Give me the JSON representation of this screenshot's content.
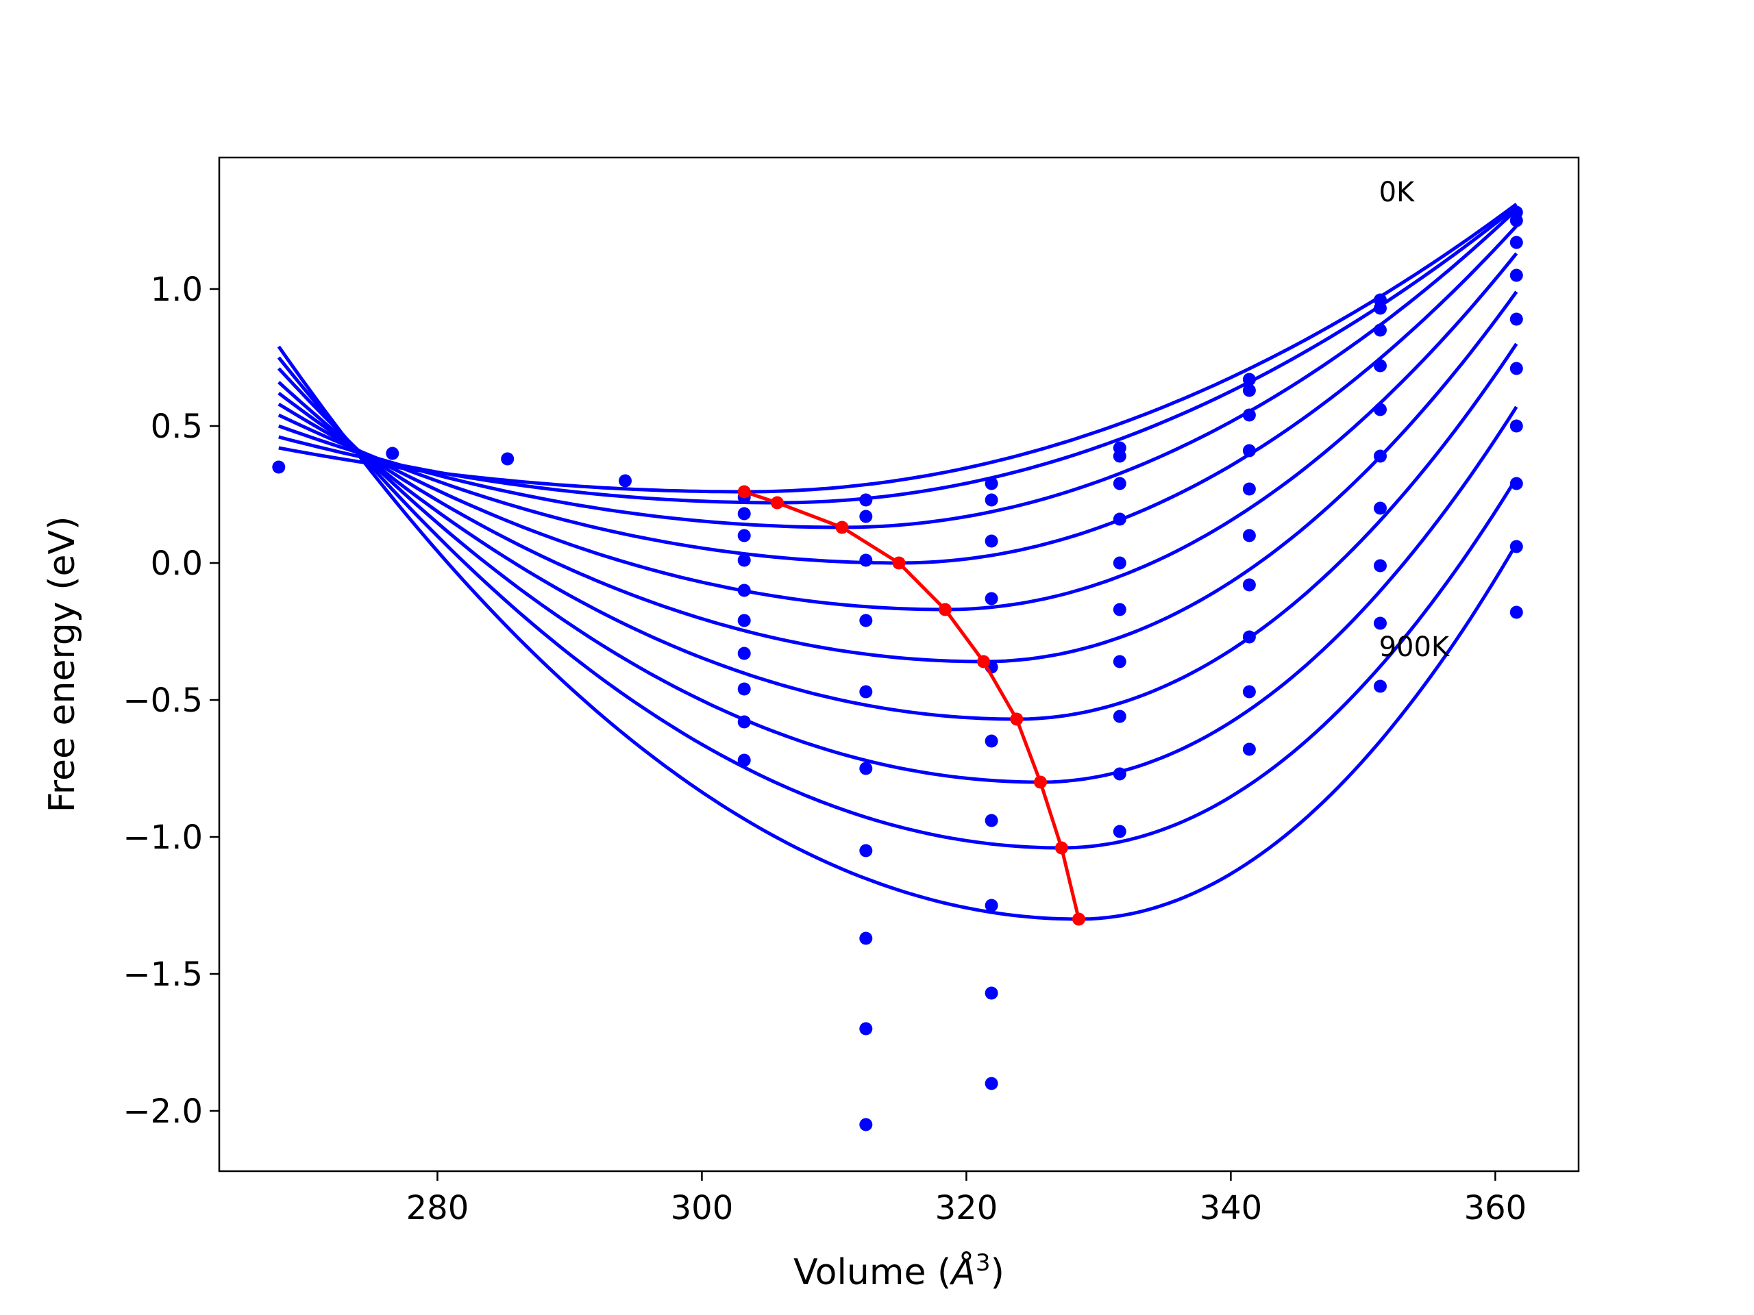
{
  "chart_data": {
    "type": "line",
    "title": "",
    "xlabel": "Volume (",
    "xlabel_symbol": "Å",
    "xlabel_sup": "3",
    "xlabel_close": ")",
    "ylabel": "Free energy (eV)",
    "xlim": [
      263.5,
      366.3
    ],
    "ylim": [
      -2.22,
      1.48
    ],
    "xticks": [
      280,
      300,
      320,
      340,
      360
    ],
    "xtick_labels": [
      "280",
      "300",
      "320",
      "340",
      "360"
    ],
    "yticks": [
      -2.0,
      -1.5,
      -1.0,
      -0.5,
      0.0,
      0.5,
      1.0
    ],
    "ytick_labels": [
      "−2.0",
      "−1.5",
      "−1.0",
      "−0.5",
      "0.0",
      "0.5",
      "1.0"
    ],
    "grid": false,
    "colors": {
      "curves": "#0000ff",
      "points": "#0000ff",
      "minima": "#ff0000",
      "frame": "#000000"
    },
    "annotations": [
      {
        "text": "0K",
        "x": 351.2,
        "y": 1.32
      },
      {
        "text": "900K",
        "x": 351.2,
        "y": -0.34
      }
    ],
    "curve_range": [
      268.0,
      361.6
    ],
    "curves": [
      {
        "vmin": 303.2,
        "emin": 0.26,
        "e_left": 0.42,
        "e_right": 1.31
      },
      {
        "vmin": 305.7,
        "emin": 0.22,
        "e_left": 0.46,
        "e_right": 1.3
      },
      {
        "vmin": 310.6,
        "emin": 0.13,
        "e_left": 0.5,
        "e_right": 1.29
      },
      {
        "vmin": 314.9,
        "emin": 0.0,
        "e_left": 0.54,
        "e_right": 1.23
      },
      {
        "vmin": 318.4,
        "emin": -0.17,
        "e_left": 0.58,
        "e_right": 1.13
      },
      {
        "vmin": 321.3,
        "emin": -0.36,
        "e_left": 0.62,
        "e_right": 0.99
      },
      {
        "vmin": 323.8,
        "emin": -0.57,
        "e_left": 0.66,
        "e_right": 0.8
      },
      {
        "vmin": 325.6,
        "emin": -0.8,
        "e_left": 0.71,
        "e_right": 0.57
      },
      {
        "vmin": 327.2,
        "emin": -1.04,
        "e_left": 0.75,
        "e_right": 0.31
      },
      {
        "vmin": 328.5,
        "emin": -1.3,
        "e_left": 0.79,
        "e_right": 0.07
      }
    ],
    "points": [
      {
        "x": 268.0,
        "y": [
          0.35
        ]
      },
      {
        "x": 276.6,
        "y": [
          0.4
        ]
      },
      {
        "x": 285.3,
        "y": [
          0.38
        ]
      },
      {
        "x": 294.2,
        "y": [
          0.3
        ]
      },
      {
        "x": 303.2,
        "y": [
          0.24,
          0.18,
          0.1,
          0.01,
          -0.1,
          -0.21,
          -0.33,
          -0.46,
          -0.58,
          -0.72
        ]
      },
      {
        "x": 312.4,
        "y": [
          0.23,
          0.17,
          0.01,
          -0.21,
          -0.47,
          -0.75,
          -1.05,
          -1.37,
          -1.7,
          -2.05
        ]
      },
      {
        "x": 321.9,
        "y": [
          0.29,
          0.23,
          0.08,
          -0.13,
          -0.38,
          -0.65,
          -0.94,
          -1.25,
          -1.57,
          -1.9
        ]
      },
      {
        "x": 331.6,
        "y": [
          0.42,
          0.39,
          0.29,
          0.16,
          0.0,
          -0.17,
          -0.36,
          -0.56,
          -0.77,
          -0.98
        ]
      },
      {
        "x": 341.4,
        "y": [
          0.67,
          0.63,
          0.54,
          0.41,
          0.27,
          0.1,
          -0.08,
          -0.27,
          -0.47,
          -0.68
        ]
      },
      {
        "x": 351.3,
        "y": [
          0.96,
          0.93,
          0.85,
          0.72,
          0.56,
          0.39,
          0.2,
          -0.01,
          -0.22,
          -0.45
        ]
      },
      {
        "x": 361.6,
        "y": [
          1.28,
          1.25,
          1.17,
          1.05,
          0.89,
          0.71,
          0.5,
          0.29,
          0.06,
          -0.18
        ]
      }
    ],
    "minima": [
      {
        "x": 303.2,
        "y": 0.26
      },
      {
        "x": 305.7,
        "y": 0.22
      },
      {
        "x": 310.6,
        "y": 0.13
      },
      {
        "x": 314.9,
        "y": 0.0
      },
      {
        "x": 318.4,
        "y": -0.17
      },
      {
        "x": 321.3,
        "y": -0.36
      },
      {
        "x": 323.8,
        "y": -0.57
      },
      {
        "x": 325.6,
        "y": -0.8
      },
      {
        "x": 327.2,
        "y": -1.04
      },
      {
        "x": 328.5,
        "y": -1.3
      }
    ]
  }
}
